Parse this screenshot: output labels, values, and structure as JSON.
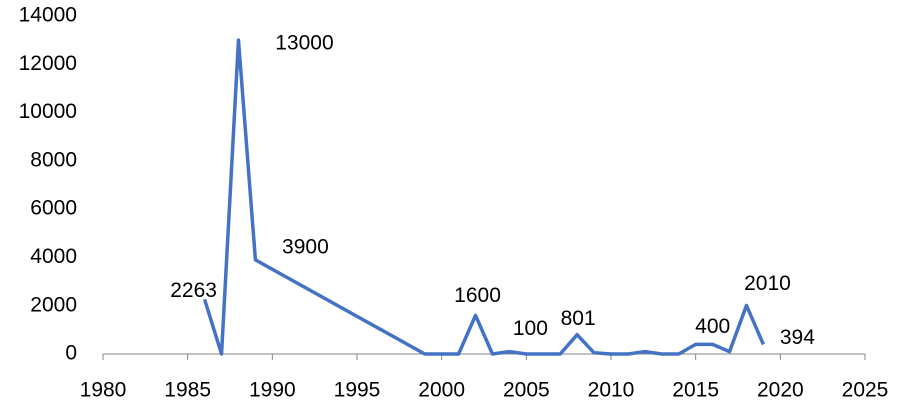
{
  "chart_data": {
    "type": "line",
    "x": [
      1986,
      1987,
      1988,
      1989,
      1999,
      2000,
      2001,
      2002,
      2003,
      2004,
      2005,
      2006,
      2007,
      2008,
      2009,
      2010,
      2011,
      2012,
      2013,
      2014,
      2015,
      2016,
      2017,
      2018,
      2019
    ],
    "series": [
      {
        "color": "#4472c4",
        "values": [
          2263,
          0,
          13000,
          3900,
          0,
          0,
          0,
          1600,
          0,
          100,
          0,
          0,
          0,
          801,
          50,
          0,
          0,
          100,
          0,
          0,
          400,
          400,
          100,
          2010,
          394
        ],
        "value_labels": [
          "2263",
          null,
          "13000",
          "3900",
          null,
          null,
          null,
          "1600",
          null,
          "100",
          null,
          null,
          null,
          "801",
          null,
          null,
          null,
          null,
          null,
          null,
          "400",
          null,
          null,
          "2010",
          "394"
        ]
      }
    ],
    "xlim": [
      1980,
      2025
    ],
    "xticks": [
      1980,
      1985,
      1990,
      1995,
      2000,
      2005,
      2010,
      2015,
      2020,
      2025
    ],
    "ylim": [
      0,
      14000
    ],
    "yticks": [
      0,
      2000,
      4000,
      6000,
      8000,
      10000,
      12000,
      14000
    ],
    "grid": false
  }
}
